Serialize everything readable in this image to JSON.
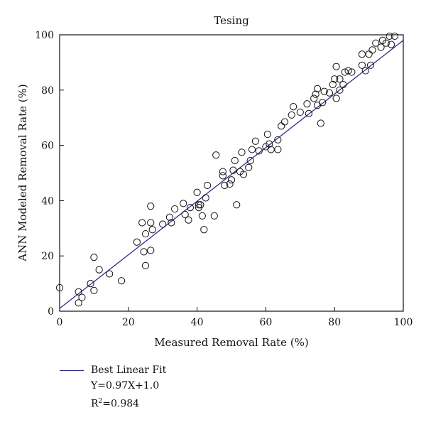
{
  "chart_data": {
    "type": "scatter",
    "title": "Tesing",
    "xlabel": "Measured Removal Rate (%)",
    "ylabel": "ANN Modeled Removal Rate (%)",
    "xlim": [
      0,
      100
    ],
    "ylim": [
      0,
      100
    ],
    "x_ticks": [
      "0",
      "20",
      "40",
      "60",
      "80",
      "100"
    ],
    "y_ticks": [
      "0",
      "20",
      "40",
      "60",
      "80",
      "100"
    ],
    "grid": false,
    "legend_position": "bottom-left",
    "series": [
      {
        "name": "Best Linear Fit",
        "kind": "line",
        "color": "#2e2a8c",
        "slope": 0.97,
        "intercept": 1.0
      },
      {
        "kind": "markers",
        "marker": "open-circle",
        "points": [
          [
            0,
            8.5
          ],
          [
            5.5,
            7
          ],
          [
            5.5,
            3
          ],
          [
            6.5,
            5
          ],
          [
            9,
            10
          ],
          [
            10,
            7.5
          ],
          [
            10,
            19.5
          ],
          [
            11.5,
            15
          ],
          [
            14.5,
            13.5
          ],
          [
            18,
            11
          ],
          [
            22.5,
            25
          ],
          [
            24,
            32
          ],
          [
            24.5,
            21.5
          ],
          [
            25,
            28
          ],
          [
            25,
            16.5
          ],
          [
            26.5,
            32
          ],
          [
            26.5,
            22
          ],
          [
            26.5,
            38
          ],
          [
            27,
            29.5
          ],
          [
            30,
            31.5
          ],
          [
            32,
            34
          ],
          [
            32.5,
            32
          ],
          [
            33.5,
            37
          ],
          [
            36,
            39
          ],
          [
            36.5,
            35
          ],
          [
            37.5,
            33
          ],
          [
            38,
            37.5
          ],
          [
            40,
            43
          ],
          [
            40.5,
            38.5
          ],
          [
            40.5,
            37.5
          ],
          [
            41,
            38.5
          ],
          [
            41.5,
            34.5
          ],
          [
            42,
            29.5
          ],
          [
            42.5,
            41
          ],
          [
            43,
            45.5
          ],
          [
            45,
            34.5
          ],
          [
            45.5,
            56.5
          ],
          [
            47.5,
            49
          ],
          [
            47.5,
            50.5
          ],
          [
            48,
            45.5
          ],
          [
            49.5,
            46
          ],
          [
            50,
            47.5
          ],
          [
            50.5,
            51
          ],
          [
            51,
            54.5
          ],
          [
            51.5,
            38.5
          ],
          [
            52.5,
            50.5
          ],
          [
            53,
            57.5
          ],
          [
            53.5,
            49.5
          ],
          [
            55,
            52
          ],
          [
            55.5,
            54.5
          ],
          [
            56,
            58.5
          ],
          [
            57,
            61.5
          ],
          [
            58,
            58
          ],
          [
            60,
            59.5
          ],
          [
            60.5,
            64
          ],
          [
            61,
            60.5
          ],
          [
            61.5,
            58.5
          ],
          [
            63.5,
            58.5
          ],
          [
            63.5,
            62
          ],
          [
            64.5,
            67
          ],
          [
            65.5,
            68.5
          ],
          [
            67.5,
            71
          ],
          [
            68,
            74
          ],
          [
            70,
            72
          ],
          [
            72,
            75
          ],
          [
            72.5,
            71.5
          ],
          [
            74,
            77
          ],
          [
            74.5,
            78.5
          ],
          [
            75,
            74.5
          ],
          [
            75,
            80.5
          ],
          [
            76,
            68
          ],
          [
            76.5,
            75.5
          ],
          [
            77,
            79.5
          ],
          [
            78.5,
            79
          ],
          [
            79.5,
            82
          ],
          [
            80,
            84
          ],
          [
            80.5,
            88.5
          ],
          [
            80.5,
            77
          ],
          [
            81.5,
            84
          ],
          [
            81.5,
            80
          ],
          [
            82.5,
            82
          ],
          [
            83,
            86.5
          ],
          [
            84,
            87
          ],
          [
            85,
            86.5
          ],
          [
            88,
            93
          ],
          [
            88,
            89
          ],
          [
            89,
            87
          ],
          [
            90,
            93
          ],
          [
            90.5,
            89
          ],
          [
            91,
            94.5
          ],
          [
            92,
            97
          ],
          [
            93.5,
            95.5
          ],
          [
            94,
            98
          ],
          [
            95,
            97
          ],
          [
            96,
            99.5
          ],
          [
            96.5,
            96.5
          ],
          [
            97.5,
            99.5
          ]
        ]
      }
    ]
  },
  "legend": {
    "fit_label": "Best Linear Fit",
    "equation": "Y=0.97X+1.0",
    "r2_prefix": "R",
    "r2_sup": "2",
    "r2_value": "=0.984"
  }
}
